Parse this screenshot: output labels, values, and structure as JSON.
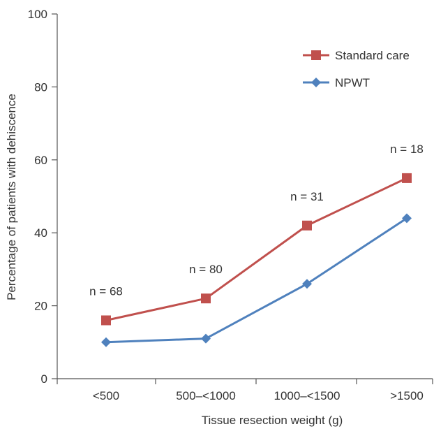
{
  "chart_data": {
    "type": "line",
    "title": "",
    "xlabel": "Tissue resection weight (g)",
    "ylabel": "Percentage of patients with dehiscence",
    "categories": [
      "<500",
      "500–<1000",
      "1000–<1500",
      ">1500"
    ],
    "ylim": [
      0,
      100
    ],
    "yticks": [
      "0",
      "20",
      "40",
      "60",
      "80",
      "100"
    ],
    "grid": false,
    "legend_position": "top-right",
    "series": [
      {
        "name": "Standard care",
        "values": [
          16,
          22,
          42,
          55
        ],
        "color": "#c0504d",
        "marker": "square"
      },
      {
        "name": "NPWT",
        "values": [
          10,
          11,
          26,
          44
        ],
        "color": "#4f81bd",
        "marker": "diamond"
      }
    ],
    "annotations": [
      "n = 68",
      "n = 80",
      "n = 31",
      "n = 18"
    ]
  }
}
